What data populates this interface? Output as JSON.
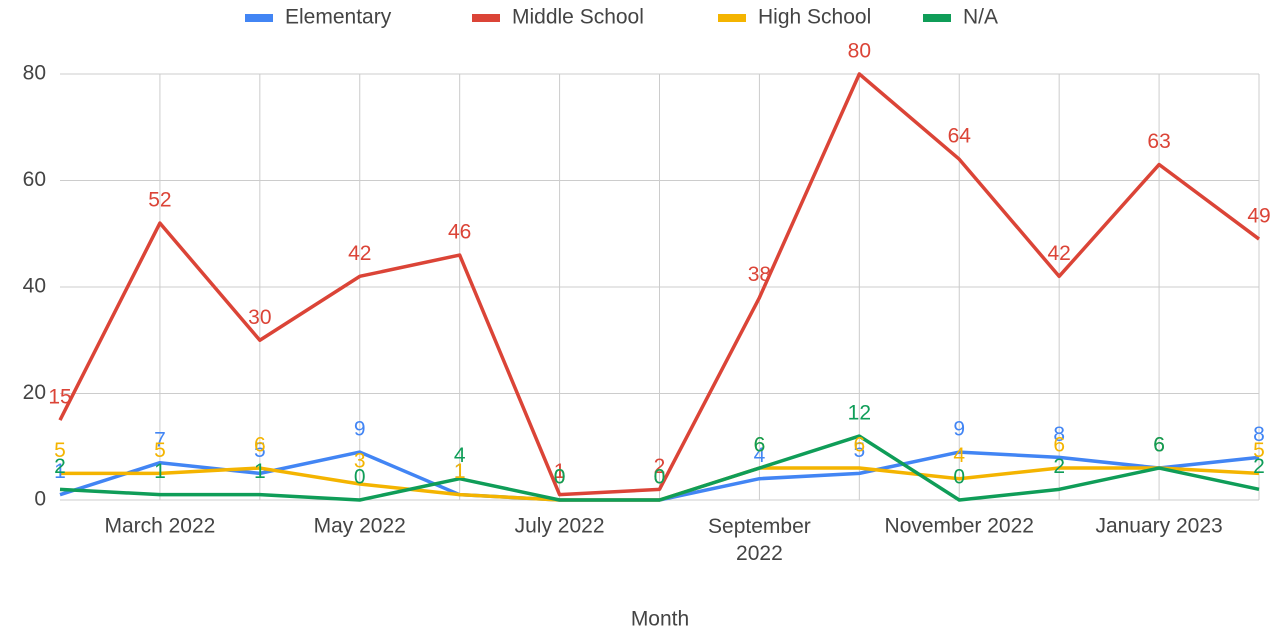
{
  "chart_data": {
    "type": "line",
    "categories": [
      null,
      "March 2022",
      null,
      "May 2022",
      null,
      "July 2022",
      null,
      "September 2022",
      null,
      "November 2022",
      null,
      "January 2023",
      null
    ],
    "series": [
      {
        "name": "Elementary",
        "color": "#4285f4",
        "values": [
          1,
          7,
          5,
          9,
          1,
          0,
          0,
          4,
          5,
          9,
          8,
          6,
          8
        ]
      },
      {
        "name": "Middle School",
        "color": "#db4437",
        "values": [
          15,
          52,
          30,
          42,
          46,
          1,
          2,
          38,
          80,
          64,
          42,
          63,
          49
        ]
      },
      {
        "name": "High School",
        "color": "#f4b400",
        "values": [
          5,
          5,
          6,
          3,
          1,
          0,
          0,
          6,
          6,
          4,
          6,
          6,
          5
        ]
      },
      {
        "name": "N/A",
        "color": "#0f9d58",
        "values": [
          2,
          1,
          1,
          0,
          4,
          0,
          0,
          6,
          12,
          0,
          2,
          6,
          2
        ]
      }
    ],
    "x_label": "Month",
    "ylim": [
      0,
      80
    ],
    "yticks": [
      0,
      20,
      40,
      60,
      80
    ],
    "grid": true,
    "legend": "top"
  }
}
